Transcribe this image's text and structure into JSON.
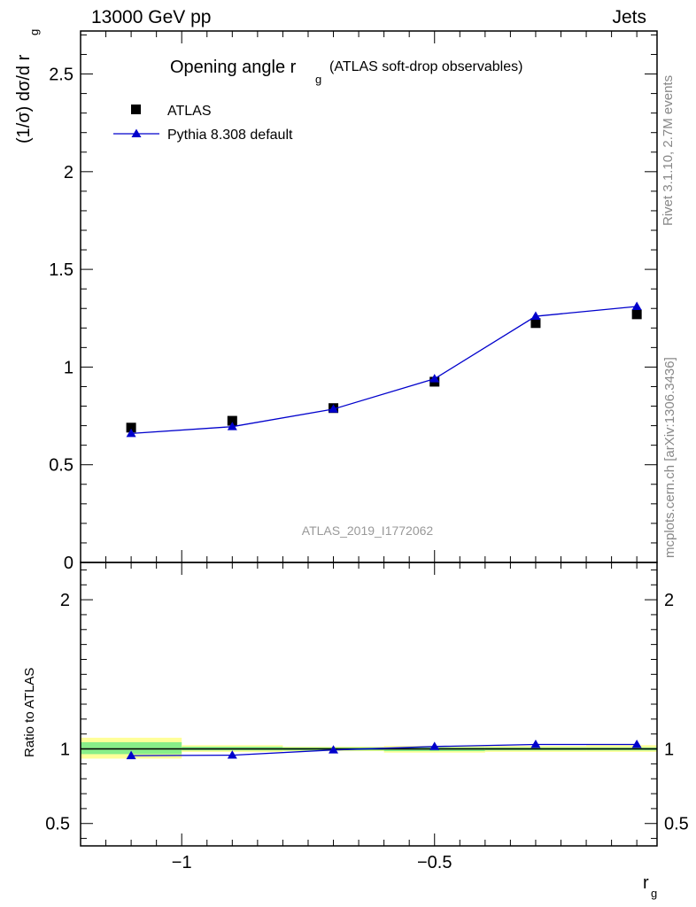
{
  "header": {
    "left": "13000 GeV pp",
    "right": "Jets"
  },
  "side": {
    "rivet": "Rivet 3.1.10,  2.7M events",
    "mcplots": "mcplots.cern.ch [arXiv:1306.3436]"
  },
  "chart_data": [
    {
      "type": "scatter",
      "panel": "main",
      "title": "Opening angle r",
      "title_sub": "g",
      "title_suffix": "(ATLAS soft-drop observables)",
      "ylabel": "(1/σ) dσ/d r",
      "ylabel_sub": "g",
      "watermark": "ATLAS_2019_I1772062",
      "xlim": [
        -1.2,
        -0.06
      ],
      "ylim": [
        0,
        2.72
      ],
      "yticks": [
        0,
        0.5,
        1,
        1.5,
        2,
        2.5
      ],
      "ytick_labels": [
        "0",
        "0.5",
        "1",
        "1.5",
        "2",
        "2.5"
      ],
      "legend_position": "top-left",
      "series": [
        {
          "name": "ATLAS",
          "color": "#000000",
          "marker": "square",
          "x": [
            -1.1,
            -0.9,
            -0.7,
            -0.5,
            -0.3,
            -0.1
          ],
          "y": [
            0.69,
            0.725,
            0.79,
            0.925,
            1.225,
            1.27
          ]
        },
        {
          "name": "Pythia 8.308 default",
          "color": "#0000cc",
          "marker": "triangle",
          "x": [
            -1.1,
            -0.9,
            -0.7,
            -0.5,
            -0.3,
            -0.1
          ],
          "y": [
            0.66,
            0.695,
            0.785,
            0.94,
            1.26,
            1.31
          ]
        }
      ]
    },
    {
      "type": "line",
      "panel": "ratio",
      "ylabel": "Ratio to ATLAS",
      "xlabel": "r",
      "xlabel_sub": "g",
      "xlim": [
        -1.2,
        -0.06
      ],
      "ylim": [
        0.35,
        2.25
      ],
      "xticks": [
        -1,
        -0.5
      ],
      "xtick_labels": [
        "−1",
        "−0.5"
      ],
      "yticks": [
        0.5,
        1,
        2
      ],
      "ytick_labels": [
        "0.5",
        "1",
        "2"
      ],
      "bands": [
        {
          "x0": -1.2,
          "x1": -1.0,
          "stat": [
            0.965,
            1.045
          ],
          "total": [
            0.935,
            1.075
          ]
        },
        {
          "x0": -1.0,
          "x1": -0.8,
          "stat": [
            0.99,
            1.015
          ],
          "total": [
            0.98,
            1.025
          ]
        },
        {
          "x0": -0.8,
          "x1": -0.6,
          "stat": [
            0.99,
            1.01
          ],
          "total": [
            0.985,
            1.015
          ]
        },
        {
          "x0": -0.6,
          "x1": -0.4,
          "stat": [
            0.985,
            1.01
          ],
          "total": [
            0.975,
            1.02
          ]
        },
        {
          "x0": -0.4,
          "x1": -0.2,
          "stat": [
            0.99,
            1.01
          ],
          "total": [
            0.98,
            1.02
          ]
        },
        {
          "x0": -0.2,
          "x1": -0.06,
          "stat": [
            0.99,
            1.01
          ],
          "total": [
            0.98,
            1.025
          ]
        }
      ],
      "series": [
        {
          "name": "Pythia 8.308 default",
          "color": "#0000cc",
          "marker": "triangle",
          "x": [
            -1.1,
            -0.9,
            -0.7,
            -0.5,
            -0.3,
            -0.1
          ],
          "y": [
            0.955,
            0.958,
            0.993,
            1.016,
            1.03,
            1.03
          ]
        }
      ]
    }
  ]
}
